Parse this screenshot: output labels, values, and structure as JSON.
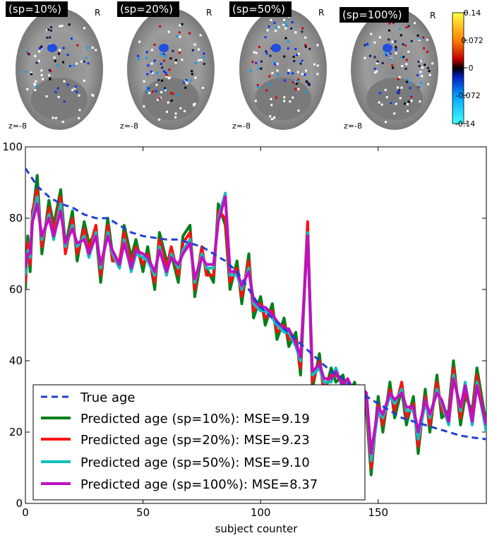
{
  "brain_panels": [
    {
      "label": "(sp=10%)",
      "orient": "R",
      "z": "z=-8"
    },
    {
      "label": "(sp=20%)",
      "orient": "R",
      "z": "z=-8"
    },
    {
      "label": "(sp=50%)",
      "orient": "R",
      "z": "z=-8"
    },
    {
      "label": "(sp=100%)",
      "orient": "R",
      "z": "z=-8"
    }
  ],
  "colorbar": {
    "ticks": [
      "0.14",
      "0.072",
      "0",
      "-0.072",
      "-0.14"
    ],
    "colors": [
      "#ffff40",
      "#ff8000",
      "#d00000",
      "#000000",
      "#0030ff",
      "#00a0ff",
      "#40ffff"
    ]
  },
  "chart_data": {
    "type": "line",
    "xlabel": "subject counter",
    "ylabel": "",
    "xlim": [
      0,
      196
    ],
    "ylim": [
      0,
      100
    ],
    "xticks": [
      "0",
      "50",
      "100",
      "150"
    ],
    "yticks": [
      "0",
      "20",
      "40",
      "60",
      "80",
      "100"
    ],
    "grid": false,
    "legend_position": "bottom-left",
    "true_age": {
      "name": "True age",
      "color": "#1f3fd6",
      "x": [
        0,
        3,
        5,
        10,
        15,
        20,
        25,
        30,
        35,
        40,
        45,
        50,
        55,
        60,
        65,
        70,
        75,
        80,
        85,
        90,
        95,
        100,
        105,
        110,
        115,
        120,
        125,
        130,
        135,
        140,
        145,
        150,
        155,
        160,
        165,
        170,
        175,
        180,
        185,
        190,
        196
      ],
      "values": [
        94,
        91,
        89,
        86,
        84,
        83,
        81,
        80,
        80,
        78,
        76,
        75,
        74.5,
        74,
        74,
        73,
        72,
        70,
        68,
        65,
        60,
        55,
        52,
        49,
        46,
        43,
        40,
        37,
        35,
        32,
        30,
        28,
        26,
        24,
        23,
        22,
        21,
        20,
        19,
        18.5,
        18
      ]
    },
    "predicted": [
      {
        "name": "Predicted age (sp=10%)",
        "color": "#00801a",
        "mse_label": "MSE=9.19",
        "x": [
          0,
          1,
          2,
          3,
          5,
          7,
          10,
          12,
          15,
          17,
          20,
          22,
          25,
          27,
          30,
          32,
          35,
          37,
          40,
          42,
          45,
          47,
          50,
          52,
          55,
          57,
          60,
          62,
          65,
          67,
          70,
          72,
          75,
          77,
          80,
          82,
          85,
          87,
          90,
          92,
          95,
          97,
          100,
          102,
          105,
          107,
          110,
          112,
          115,
          117,
          120,
          122,
          125,
          127,
          130,
          132,
          135,
          137,
          140,
          142,
          145,
          147,
          150,
          152,
          155,
          157,
          160,
          162,
          165,
          167,
          170,
          172,
          175,
          177,
          180,
          182,
          185,
          187,
          190,
          192,
          196
        ],
        "values": [
          60,
          75,
          65,
          80,
          92,
          70,
          85,
          78,
          88,
          72,
          82,
          68,
          79,
          73,
          76,
          62,
          80,
          70,
          66,
          78,
          69,
          74,
          65,
          72,
          60,
          76,
          68,
          70,
          62,
          75,
          78,
          58,
          70,
          66,
          62,
          84,
          78,
          60,
          68,
          56,
          70,
          52,
          58,
          50,
          56,
          46,
          52,
          44,
          48,
          36,
          78,
          32,
          42,
          30,
          38,
          34,
          36,
          30,
          34,
          28,
          26,
          8,
          30,
          20,
          34,
          24,
          32,
          22,
          30,
          14,
          32,
          20,
          36,
          24,
          26,
          40,
          22,
          30,
          26,
          38,
          22
        ]
      },
      {
        "name": "Predicted age (sp=20%)",
        "color": "#ff1010",
        "mse_label": "MSE=9.23",
        "x": [
          0,
          1,
          2,
          3,
          5,
          7,
          10,
          12,
          15,
          17,
          20,
          22,
          25,
          27,
          30,
          32,
          35,
          37,
          40,
          42,
          45,
          47,
          50,
          52,
          55,
          57,
          60,
          62,
          65,
          67,
          70,
          72,
          75,
          77,
          80,
          82,
          85,
          87,
          90,
          92,
          95,
          97,
          100,
          102,
          105,
          107,
          110,
          112,
          115,
          117,
          120,
          122,
          125,
          127,
          130,
          132,
          135,
          137,
          140,
          142,
          145,
          147,
          150,
          152,
          155,
          157,
          160,
          162,
          165,
          167,
          170,
          172,
          175,
          177,
          180,
          182,
          185,
          187,
          190,
          192,
          196
        ],
        "values": [
          62,
          73,
          67,
          82,
          88,
          72,
          83,
          76,
          86,
          70,
          80,
          70,
          77,
          71,
          78,
          64,
          78,
          68,
          68,
          76,
          67,
          72,
          67,
          70,
          62,
          74,
          66,
          72,
          64,
          73,
          76,
          60,
          72,
          64,
          64,
          82,
          80,
          62,
          66,
          58,
          68,
          54,
          56,
          52,
          54,
          48,
          50,
          46,
          46,
          38,
          79,
          34,
          40,
          32,
          36,
          36,
          34,
          32,
          32,
          30,
          28,
          10,
          28,
          22,
          32,
          26,
          34,
          24,
          28,
          16,
          30,
          22,
          34,
          26,
          24,
          38,
          24,
          32,
          24,
          36,
          20
        ]
      },
      {
        "name": "Predicted age (sp=50%)",
        "color": "#10c0c0",
        "mse_label": "MSE=9.10",
        "x": [
          0,
          1,
          2,
          3,
          5,
          7,
          10,
          12,
          15,
          17,
          20,
          22,
          25,
          27,
          30,
          32,
          35,
          37,
          40,
          42,
          45,
          47,
          50,
          52,
          55,
          57,
          60,
          62,
          65,
          67,
          70,
          72,
          75,
          77,
          80,
          82,
          85,
          87,
          90,
          92,
          95,
          97,
          100,
          102,
          105,
          107,
          110,
          112,
          115,
          117,
          120,
          122,
          125,
          127,
          130,
          132,
          135,
          137,
          140,
          142,
          145,
          147,
          150,
          152,
          155,
          157,
          160,
          162,
          165,
          167,
          170,
          172,
          175,
          177,
          180,
          182,
          185,
          187,
          190,
          192,
          196
        ],
        "values": [
          64,
          71,
          69,
          80,
          86,
          74,
          81,
          74,
          84,
          72,
          78,
          72,
          75,
          69,
          76,
          66,
          76,
          70,
          66,
          74,
          65,
          70,
          69,
          68,
          64,
          72,
          64,
          70,
          66,
          71,
          74,
          62,
          70,
          66,
          66,
          80,
          87,
          64,
          64,
          60,
          66,
          56,
          54,
          54,
          52,
          50,
          48,
          48,
          44,
          40,
          76,
          36,
          38,
          34,
          34,
          38,
          32,
          34,
          30,
          32,
          30,
          12,
          26,
          24,
          30,
          28,
          32,
          26,
          26,
          18,
          28,
          24,
          32,
          28,
          22,
          36,
          26,
          34,
          22,
          34,
          20
        ]
      },
      {
        "name": "Predicted age (sp=100%)",
        "color": "#c010c0",
        "mse_label": "MSE=8.37",
        "x": [
          0,
          1,
          2,
          3,
          5,
          7,
          10,
          12,
          15,
          17,
          20,
          22,
          25,
          27,
          30,
          32,
          35,
          37,
          40,
          42,
          45,
          47,
          50,
          52,
          55,
          57,
          60,
          62,
          65,
          67,
          70,
          72,
          75,
          77,
          80,
          82,
          85,
          87,
          90,
          92,
          95,
          97,
          100,
          102,
          105,
          107,
          110,
          112,
          115,
          117,
          120,
          122,
          125,
          127,
          130,
          132,
          135,
          137,
          140,
          142,
          145,
          147,
          150,
          152,
          155,
          157,
          160,
          162,
          165,
          167,
          170,
          172,
          175,
          177,
          180,
          182,
          185,
          187,
          190,
          192,
          196
        ],
        "values": [
          66,
          70,
          70,
          79,
          84,
          75,
          80,
          75,
          82,
          73,
          77,
          73,
          74,
          70,
          75,
          67,
          75,
          71,
          67,
          73,
          66,
          71,
          70,
          69,
          65,
          71,
          65,
          69,
          67,
          70,
          73,
          63,
          69,
          67,
          67,
          79,
          86,
          65,
          65,
          61,
          65,
          57,
          55,
          55,
          53,
          51,
          49,
          49,
          45,
          41,
          75,
          37,
          39,
          35,
          35,
          37,
          33,
          35,
          31,
          33,
          31,
          14,
          27,
          25,
          31,
          29,
          31,
          27,
          27,
          20,
          29,
          25,
          31,
          29,
          23,
          35,
          27,
          33,
          23,
          33,
          22
        ]
      }
    ]
  }
}
